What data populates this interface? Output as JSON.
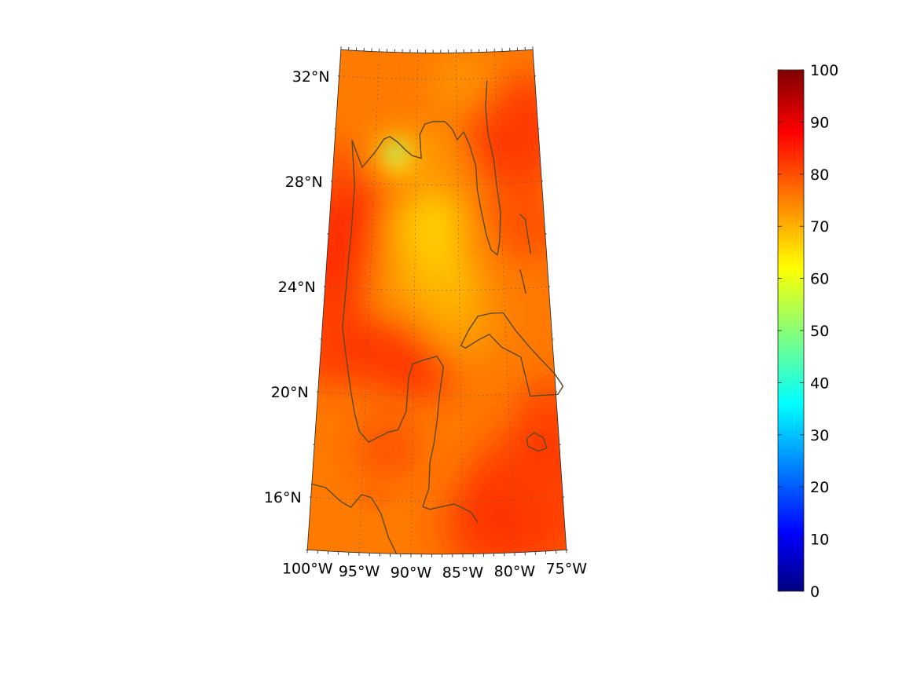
{
  "map": {
    "lat_labels": [
      {
        "label": "32°N",
        "lat": 32
      },
      {
        "label": "28°N",
        "lat": 28
      },
      {
        "label": "24°N",
        "lat": 24
      },
      {
        "label": "20°N",
        "lat": 20
      },
      {
        "label": "16°N",
        "lat": 16
      }
    ],
    "lon_labels": [
      {
        "label": "100°W",
        "lon": -100
      },
      {
        "label": "95°W",
        "lon": -95
      },
      {
        "label": "90°W",
        "lon": -90
      },
      {
        "label": "85°W",
        "lon": -85
      },
      {
        "label": "80°W",
        "lon": -80
      },
      {
        "label": "75°W",
        "lon": -75
      }
    ],
    "extent": {
      "lon_min": -100,
      "lon_max": -75,
      "lat_min": 14,
      "lat_max": 33
    }
  },
  "colorbar": {
    "min": 0,
    "max": 100,
    "ticks": [
      "0",
      "10",
      "20",
      "30",
      "40",
      "50",
      "60",
      "70",
      "80",
      "90",
      "100"
    ],
    "colormap": "jet"
  },
  "colors": {
    "coastline": "#5a4a1e",
    "field_base": "#ff7a00",
    "field_high": "#ff2a00",
    "field_low": "#ffe000",
    "field_min": "#a8f070"
  }
}
